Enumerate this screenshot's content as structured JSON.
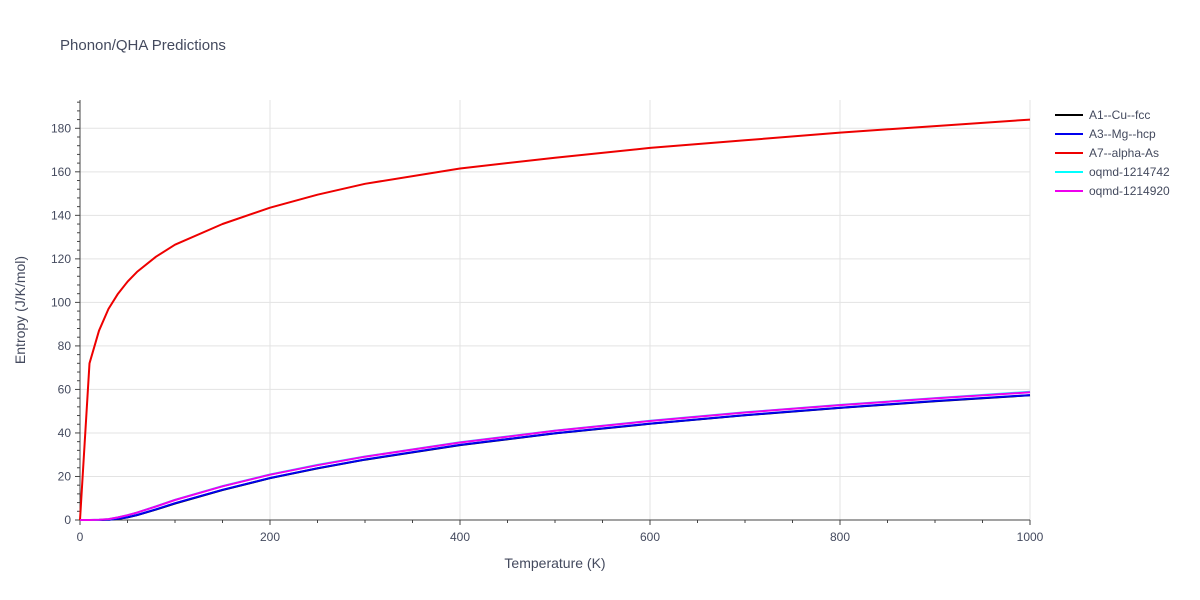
{
  "chart_data": {
    "type": "line",
    "title": "Phonon/QHA Predictions",
    "xlabel": "Temperature (K)",
    "ylabel": "Entropy (J/K/mol)",
    "xlim": [
      0,
      1000
    ],
    "ylim": [
      0,
      193
    ],
    "xticks": [
      0,
      200,
      400,
      600,
      800,
      1000
    ],
    "yticks": [
      0,
      20,
      40,
      60,
      80,
      100,
      120,
      140,
      160,
      180
    ],
    "grid": true,
    "legend_position": "top-right",
    "series": [
      {
        "name": "A1--Cu--fcc",
        "color": "#000000",
        "x": [
          0,
          10,
          20,
          30,
          40,
          50,
          60,
          80,
          100,
          150,
          200,
          250,
          300,
          400,
          500,
          600,
          700,
          800,
          900,
          1000
        ],
        "y": [
          0,
          0,
          0,
          0.1,
          0.5,
          1.2,
          2.2,
          4.8,
          7.6,
          13.8,
          19.2,
          23.7,
          27.7,
          34.4,
          39.8,
          44.2,
          48.1,
          51.5,
          54.6,
          57.3
        ]
      },
      {
        "name": "A3--Mg--hcp",
        "color": "#0000ee",
        "x": [
          0,
          10,
          20,
          30,
          40,
          50,
          60,
          80,
          100,
          150,
          200,
          250,
          300,
          400,
          500,
          600,
          700,
          800,
          900,
          1000
        ],
        "y": [
          0,
          0,
          0,
          0.1,
          0.6,
          1.3,
          2.3,
          4.9,
          7.7,
          13.9,
          19.3,
          23.8,
          27.8,
          34.5,
          39.9,
          44.3,
          48.2,
          51.6,
          54.7,
          57.4
        ]
      },
      {
        "name": "A7--alpha-As",
        "color": "#ee0000",
        "x": [
          0,
          10,
          20,
          30,
          40,
          50,
          60,
          80,
          100,
          150,
          200,
          250,
          300,
          400,
          500,
          600,
          700,
          800,
          900,
          1000
        ],
        "y": [
          0,
          72,
          87,
          97,
          104,
          109.5,
          114,
          121,
          126.5,
          136,
          143.5,
          149.5,
          154.5,
          161.5,
          166.5,
          171,
          174.5,
          178,
          181,
          184
        ]
      },
      {
        "name": "oqmd-1214742",
        "color": "#00ffff",
        "x": [
          0,
          10,
          20,
          30,
          40,
          50,
          60,
          80,
          100,
          150,
          200,
          250,
          300,
          400,
          500,
          600,
          700,
          800,
          900,
          1000
        ],
        "y": [
          0,
          0,
          0.1,
          0.4,
          1.2,
          2.2,
          3.4,
          6.3,
          9.3,
          15.6,
          20.9,
          25.3,
          29.2,
          35.7,
          41.1,
          45.6,
          49.5,
          52.9,
          56.0,
          58.9
        ]
      },
      {
        "name": "oqmd-1214920",
        "color": "#ee00ee",
        "x": [
          0,
          10,
          20,
          30,
          40,
          50,
          60,
          80,
          100,
          150,
          200,
          250,
          300,
          400,
          500,
          600,
          700,
          800,
          900,
          1000
        ],
        "y": [
          0,
          0,
          0.1,
          0.4,
          1.2,
          2.2,
          3.4,
          6.2,
          9.2,
          15.5,
          20.8,
          25.2,
          29.1,
          35.6,
          41.0,
          45.5,
          49.4,
          52.8,
          55.9,
          58.7
        ]
      }
    ]
  }
}
